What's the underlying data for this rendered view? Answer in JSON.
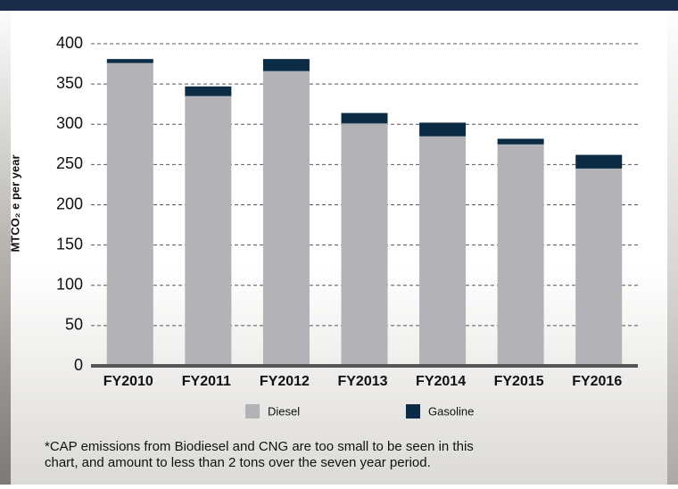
{
  "chart_data": {
    "type": "stacked-bar",
    "ylabel": "MTCO₂ e per year",
    "categories": [
      "FY2010",
      "FY2011",
      "FY2012",
      "FY2013",
      "FY2014",
      "FY2015",
      "FY2016"
    ],
    "series": [
      {
        "name": "Diesel",
        "color": "#b2b2b7",
        "values": [
          376,
          335,
          366,
          301,
          285,
          275,
          245
        ]
      },
      {
        "name": "Gasoline",
        "color": "#0c2c46",
        "values": [
          5,
          12,
          15,
          13,
          17,
          7,
          17
        ]
      }
    ],
    "ylim": [
      0,
      400
    ],
    "yticks": [
      0,
      50,
      100,
      150,
      200,
      250,
      300,
      350,
      400
    ],
    "grid": true,
    "footnote": [
      "*CAP emissions from Biodiesel and CNG are too small to be seen in this",
      "chart, and amount to less than 2 tons over the seven year period."
    ]
  }
}
